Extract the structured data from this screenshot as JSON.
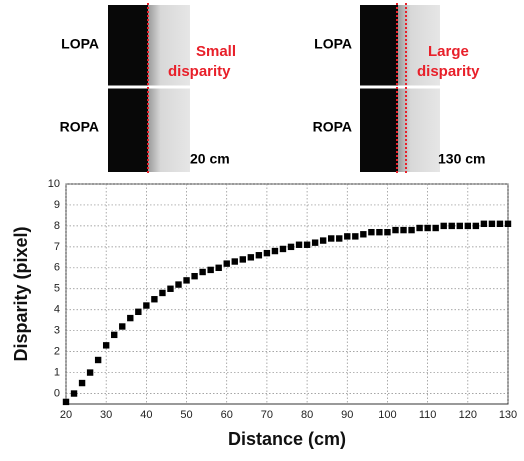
{
  "panels": [
    {
      "top_label": "LOPA",
      "bottom_label": "ROPA",
      "annotation": [
        "Small",
        "disparity"
      ],
      "distance": "20 cm"
    },
    {
      "top_label": "LOPA",
      "bottom_label": "ROPA",
      "annotation": [
        "Large",
        "disparity"
      ],
      "distance": "130 cm"
    }
  ],
  "chart_data": {
    "type": "scatter",
    "xlabel": "Distance (cm)",
    "ylabel": "Disparity (pixel)",
    "x": [
      20,
      22,
      24,
      26,
      28,
      30,
      32,
      34,
      36,
      38,
      40,
      42,
      44,
      46,
      48,
      50,
      52,
      54,
      56,
      58,
      60,
      62,
      64,
      66,
      68,
      70,
      72,
      74,
      76,
      78,
      80,
      82,
      84,
      86,
      88,
      90,
      92,
      94,
      96,
      98,
      100,
      102,
      104,
      106,
      108,
      110,
      112,
      114,
      116,
      118,
      120,
      122,
      124,
      126,
      128,
      130
    ],
    "values": [
      -0.4,
      0,
      0.5,
      1.0,
      1.6,
      2.3,
      2.8,
      3.2,
      3.6,
      3.9,
      4.2,
      4.5,
      4.8,
      5.0,
      5.2,
      5.4,
      5.6,
      5.8,
      5.9,
      6.0,
      6.2,
      6.3,
      6.4,
      6.5,
      6.6,
      6.7,
      6.8,
      6.9,
      7.0,
      7.1,
      7.1,
      7.2,
      7.3,
      7.4,
      7.4,
      7.5,
      7.5,
      7.6,
      7.7,
      7.7,
      7.7,
      7.8,
      7.8,
      7.8,
      7.9,
      7.9,
      7.9,
      8.0,
      8.0,
      8.0,
      8.0,
      8.0,
      8.1,
      8.1,
      8.1,
      8.1
    ],
    "color": "#000000",
    "xlim": [
      20,
      130
    ],
    "ylim": [
      -0.5,
      10
    ],
    "xticks": [
      20,
      30,
      40,
      50,
      60,
      70,
      80,
      90,
      100,
      110,
      120,
      130
    ],
    "yticks": [
      0,
      1,
      2,
      3,
      4,
      5,
      6,
      7,
      8,
      9,
      10
    ],
    "grid": true
  }
}
